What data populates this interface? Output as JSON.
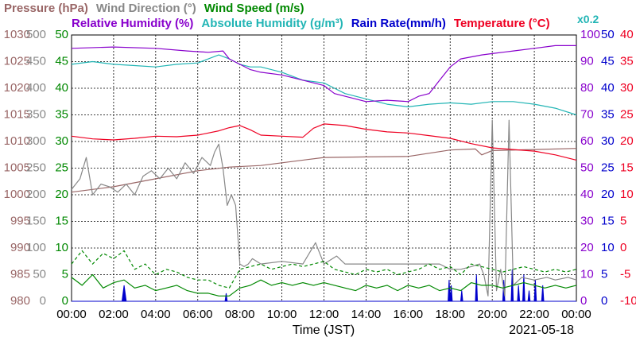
{
  "chart_data": {
    "type": "line",
    "date_label": "2021-05-18",
    "xlabel": "Time (JST)",
    "x_ticks": [
      "00:00",
      "02:00",
      "04:00",
      "06:00",
      "08:00",
      "10:00",
      "12:00",
      "14:00",
      "16:00",
      "18:00",
      "20:00",
      "22:00",
      "00:00"
    ],
    "grid": true,
    "legend": {
      "row1": [
        {
          "text": "Pressure (hPa)",
          "color": "#996666"
        },
        {
          "text": "Wind Direction (°)",
          "color": "#888888"
        },
        {
          "text": "Wind Speed (m/s)",
          "color": "#008800"
        }
      ],
      "row2": [
        {
          "text": "Relative Humidity (%)",
          "color": "#8800cc"
        },
        {
          "text": "Absolute Humidity (g/m³)",
          "color": "#22b5b5"
        },
        {
          "text": "Rain Rate(mm/h)",
          "color": "#0000cc"
        },
        {
          "text": "Temperature (°C)",
          "color": "#ee0022"
        },
        {
          "text": "x0.2",
          "color": "#22b5b5"
        }
      ]
    },
    "axes": {
      "pressure": {
        "color": "#996666",
        "ticks": [
          "1030",
          "1025",
          "1020",
          "1015",
          "1010",
          "1005",
          "1000",
          "995",
          "990",
          "985",
          "980"
        ],
        "ylim": [
          980,
          1030
        ]
      },
      "wind_direction": {
        "color": "#888888",
        "ticks": [
          "500",
          "450",
          "400",
          "350",
          "300",
          "250",
          "200",
          "150",
          "100",
          "50",
          "0"
        ],
        "ylim": [
          0,
          500
        ]
      },
      "wind_speed": {
        "color": "#008800",
        "ticks": [
          "50",
          "45",
          "40",
          "35",
          "30",
          "25",
          "20",
          "15",
          "10",
          "5",
          "0"
        ],
        "ylim": [
          0,
          50
        ]
      },
      "relative_humidity": {
        "color": "#8800cc",
        "ticks": [
          "100",
          "90",
          "80",
          "70",
          "60",
          "50",
          "40",
          "30",
          "20",
          "10",
          "0"
        ],
        "ylim": [
          0,
          100
        ]
      },
      "rain_rate": {
        "color": "#0000cc",
        "ticks": [
          "50",
          "45",
          "40",
          "35",
          "30",
          "25",
          "20",
          "15",
          "10",
          "5",
          "0"
        ],
        "ylim": [
          0,
          50
        ]
      },
      "temperature": {
        "color": "#ee0022",
        "ticks": [
          "40",
          "35",
          "30",
          "25",
          "20",
          "15",
          "10",
          "5",
          "0",
          "-5",
          "-10"
        ],
        "ylim": [
          -10,
          40
        ]
      }
    },
    "series": [
      {
        "key": "pressure",
        "color": "#996666",
        "scale": "pressure",
        "x": [
          0,
          2,
          4,
          6,
          7.5,
          9,
          10,
          12,
          14,
          16,
          18,
          19.2,
          19.5,
          20,
          22,
          24
        ],
        "y": [
          1000.5,
          1001.5,
          1003,
          1004.5,
          1005.2,
          1005.5,
          1006,
          1007,
          1007.1,
          1007.2,
          1008.4,
          1008.6,
          1007.5,
          1008.3,
          1008.5,
          1008.7
        ]
      },
      {
        "key": "temperature",
        "color": "#ee0022",
        "scale": "temperature",
        "x": [
          0,
          1,
          2,
          3,
          4,
          5,
          6,
          7,
          7.5,
          8,
          8.5,
          9,
          10,
          11,
          11.5,
          12,
          13,
          14,
          15,
          16,
          17,
          18,
          19,
          20,
          21,
          22,
          23,
          24
        ],
        "y": [
          21,
          20.5,
          20.3,
          20.6,
          21,
          20.9,
          21.2,
          22,
          22.6,
          23,
          22.2,
          21.2,
          21,
          20.8,
          22.5,
          23.3,
          23,
          22.3,
          21.8,
          21.6,
          21.1,
          20.6,
          19.6,
          18.8,
          18.5,
          18.2,
          17.5,
          16.5
        ]
      },
      {
        "key": "relative_humidity",
        "color": "#8800cc",
        "scale": "relative_humidity",
        "x": [
          0,
          2,
          4,
          5.5,
          6.5,
          7.2,
          7.5,
          8,
          8.5,
          9,
          10,
          11,
          12,
          12.5,
          13.5,
          14,
          15,
          16,
          16.5,
          17,
          17.5,
          18,
          18.5,
          19.5,
          20,
          21,
          22,
          23,
          24
        ],
        "y": [
          95,
          95.5,
          95,
          94,
          93.5,
          94,
          91,
          89,
          87,
          86,
          85,
          83,
          81,
          78,
          76,
          75,
          75.5,
          75,
          77,
          78,
          83,
          88,
          91,
          92.5,
          93,
          94,
          95,
          96,
          96
        ]
      },
      {
        "key": "absolute_humidity",
        "color": "#22b5b5",
        "scale": "relative_humidity",
        "x": [
          0,
          1,
          2,
          3,
          4,
          5,
          6,
          6.5,
          7,
          7.5,
          8,
          8.5,
          9,
          10,
          11,
          12,
          12.5,
          13,
          14,
          15,
          16,
          17,
          18,
          19,
          20,
          21,
          22,
          23,
          24
        ],
        "y": [
          89,
          90,
          89,
          88.5,
          88,
          89,
          89.5,
          91,
          92.5,
          91,
          89,
          88,
          88,
          86,
          83,
          82,
          80,
          78,
          76,
          74,
          73,
          74,
          74.5,
          74,
          75,
          75,
          74,
          72.5,
          70
        ]
      },
      {
        "key": "wind_direction",
        "color": "#888888",
        "scale": "wind_direction",
        "x": [
          0,
          0.4,
          0.7,
          1,
          1.4,
          1.8,
          2.2,
          2.6,
          3,
          3.4,
          3.8,
          4.2,
          4.6,
          5,
          5.4,
          5.8,
          6.2,
          6.6,
          6.8,
          7,
          7.2,
          7.4,
          7.6,
          7.8,
          8,
          8.2,
          8.4,
          8.6,
          9,
          10,
          11,
          11.6,
          12,
          12.6,
          13,
          14,
          15,
          16,
          17,
          17.5,
          18,
          18.5,
          19,
          19.4,
          19.6,
          19.8,
          20,
          20.2,
          20.4,
          20.6,
          20.8,
          21,
          21.4,
          22,
          22.6,
          23,
          23.6,
          24
        ],
        "y": [
          210,
          230,
          270,
          200,
          220,
          215,
          205,
          220,
          200,
          235,
          245,
          230,
          250,
          230,
          260,
          240,
          270,
          255,
          280,
          295,
          250,
          180,
          200,
          180,
          70,
          65,
          70,
          80,
          70,
          75,
          70,
          110,
          70,
          85,
          70,
          70,
          70,
          70,
          70,
          70,
          60,
          60,
          65,
          70,
          50,
          10,
          340,
          20,
          60,
          10,
          340,
          30,
          45,
          40,
          45,
          40,
          45,
          40
        ]
      },
      {
        "key": "wind_speed",
        "color": "#008800",
        "scale": "wind_speed",
        "x": [
          0,
          0.5,
          1,
          1.5,
          2,
          2.5,
          3,
          3.5,
          4,
          4.5,
          5,
          5.5,
          6,
          6.5,
          7,
          7.5,
          8,
          8.5,
          9,
          9.5,
          10,
          10.5,
          11,
          11.5,
          12,
          12.5,
          13,
          13.5,
          14,
          14.5,
          15,
          15.5,
          16,
          16.5,
          17,
          17.5,
          18,
          18.5,
          19,
          19.5,
          20,
          20.5,
          21,
          21.5,
          22,
          22.5,
          23,
          23.5,
          24
        ],
        "y": [
          4.5,
          3,
          5,
          2.5,
          3.5,
          4,
          2.5,
          3,
          2,
          2.5,
          3,
          2,
          1.5,
          1.5,
          1,
          1,
          2.5,
          3,
          4,
          3,
          3.5,
          3,
          3.5,
          3,
          3.5,
          3,
          2.5,
          2,
          3,
          2.5,
          3,
          2,
          3,
          2.5,
          3,
          2,
          2.5,
          2,
          3.5,
          3,
          3,
          2.5,
          3,
          3.5,
          3,
          2.5,
          3,
          2.5,
          3
        ]
      },
      {
        "key": "wind_speed_gust",
        "color": "#008800",
        "scale": "wind_speed",
        "dash": "4,3",
        "x": [
          0,
          0.5,
          1,
          1.5,
          2,
          2.5,
          3,
          3.5,
          4,
          4.5,
          5,
          5.5,
          6,
          6.5,
          7,
          7.5,
          8,
          8.5,
          9,
          9.5,
          10,
          10.5,
          11,
          11.5,
          12,
          12.5,
          13,
          13.5,
          14,
          14.5,
          15,
          15.5,
          16,
          16.5,
          17,
          17.5,
          18,
          18.5,
          19,
          19.5,
          20,
          20.5,
          21,
          21.5,
          22,
          22.5,
          23,
          23.5,
          24
        ],
        "y": [
          7,
          9.5,
          7,
          9,
          8,
          9.5,
          6,
          7,
          5,
          6,
          5.5,
          4.5,
          4,
          4,
          3,
          2.5,
          6,
          6.5,
          7,
          6,
          6.5,
          7,
          6.5,
          7,
          7.5,
          6,
          5.5,
          5,
          6,
          5.5,
          6,
          5,
          5.5,
          6,
          7,
          6,
          6.5,
          5,
          7,
          6.5,
          6,
          5.5,
          6,
          6.5,
          6,
          5.5,
          6,
          5.5,
          6
        ]
      },
      {
        "key": "rain_rate",
        "color": "#0000cc",
        "scale": "rain_rate",
        "fill": true,
        "x": [
          0,
          2.4,
          2.5,
          2.6,
          7.3,
          7.35,
          7.4,
          17.9,
          17.95,
          18.0,
          18.05,
          18.1,
          18.5,
          18.55,
          18.6,
          19.2,
          19.25,
          19.3,
          20.5,
          20.55,
          20.6,
          20.9,
          20.95,
          21.0,
          21.2,
          21.25,
          21.3,
          21.45,
          21.5,
          21.55,
          21.7,
          21.75,
          21.8,
          22.0,
          22.05,
          22.1,
          22.35,
          22.4,
          22.45,
          24
        ],
        "y": [
          0,
          0,
          3,
          0,
          0,
          1.5,
          0,
          0,
          4,
          0,
          3,
          0,
          0,
          2,
          0,
          0,
          5,
          0,
          0,
          4,
          0,
          0,
          6,
          0,
          0,
          3,
          0,
          0,
          5,
          0,
          0,
          2,
          0,
          0,
          4,
          0,
          0,
          3,
          0,
          0
        ]
      }
    ]
  }
}
